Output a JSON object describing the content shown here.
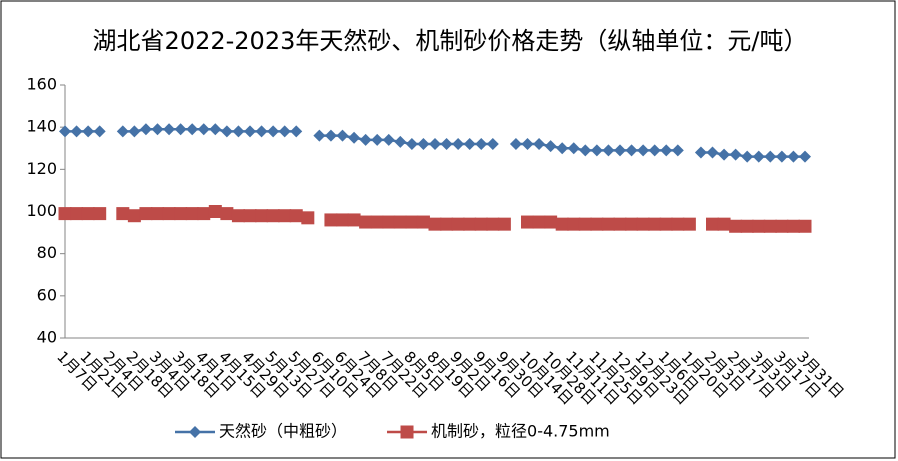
{
  "chart_data": {
    "type": "line",
    "title": "湖北省2022-2023年天然砂、机制砂价格走势（纵轴单位：元/吨）",
    "categories": [
      "1月7日",
      null,
      "1月21日",
      null,
      "2月4日",
      null,
      "2月18日",
      null,
      "3月4日",
      null,
      "3月18日",
      null,
      "4月1日",
      null,
      "4月15日",
      null,
      "4月29日",
      null,
      "5月13日",
      null,
      "5月27日",
      null,
      "6月10日",
      null,
      "6月24日",
      null,
      "7月8日",
      null,
      "7月22日",
      null,
      "8月5日",
      null,
      "8月19日",
      null,
      "9月2日",
      null,
      "9月16日",
      null,
      "9月30日",
      null,
      "10月14日",
      null,
      "10月28日",
      null,
      "11月11日",
      null,
      "11月25日",
      null,
      "12月9日",
      null,
      "12月23日",
      null,
      "1月6日",
      null,
      "1月20日",
      null,
      "2月3日",
      null,
      "2月17日",
      null,
      "3月3日",
      null,
      "3月17日",
      null,
      "3月31日"
    ],
    "series": [
      {
        "name": "天然砂（中粗砂）",
        "color": "#4572a7",
        "marker": "diamond",
        "values": [
          138,
          138,
          138,
          138,
          null,
          138,
          138,
          139,
          139,
          139,
          139,
          139,
          139,
          139,
          138,
          138,
          138,
          138,
          138,
          138,
          138,
          null,
          136,
          136,
          136,
          135,
          134,
          134,
          134,
          133,
          132,
          132,
          132,
          132,
          132,
          132,
          132,
          132,
          null,
          132,
          132,
          132,
          131,
          130,
          130,
          129,
          129,
          129,
          129,
          129,
          129,
          129,
          129,
          129,
          null,
          128,
          128,
          127,
          127,
          126,
          126,
          126,
          126,
          126,
          126
        ]
      },
      {
        "name": "机制砂，粒径0-4.75mm",
        "color": "#be4b48",
        "marker": "square",
        "values": [
          99,
          99,
          99,
          99,
          null,
          99,
          98,
          99,
          99,
          99,
          99,
          99,
          99,
          100,
          99,
          98,
          98,
          98,
          98,
          98,
          98,
          97,
          null,
          96,
          96,
          96,
          95,
          95,
          95,
          95,
          95,
          95,
          94,
          94,
          94,
          94,
          94,
          94,
          94,
          null,
          95,
          95,
          95,
          94,
          94,
          94,
          94,
          94,
          94,
          94,
          94,
          94,
          94,
          94,
          94,
          null,
          94,
          94,
          93,
          93,
          93,
          93,
          93,
          93,
          93
        ]
      }
    ],
    "ylim": [
      40,
      160
    ],
    "yticks": [
      40,
      60,
      80,
      100,
      120,
      140,
      160
    ],
    "grid": false,
    "legend": "bottom"
  }
}
